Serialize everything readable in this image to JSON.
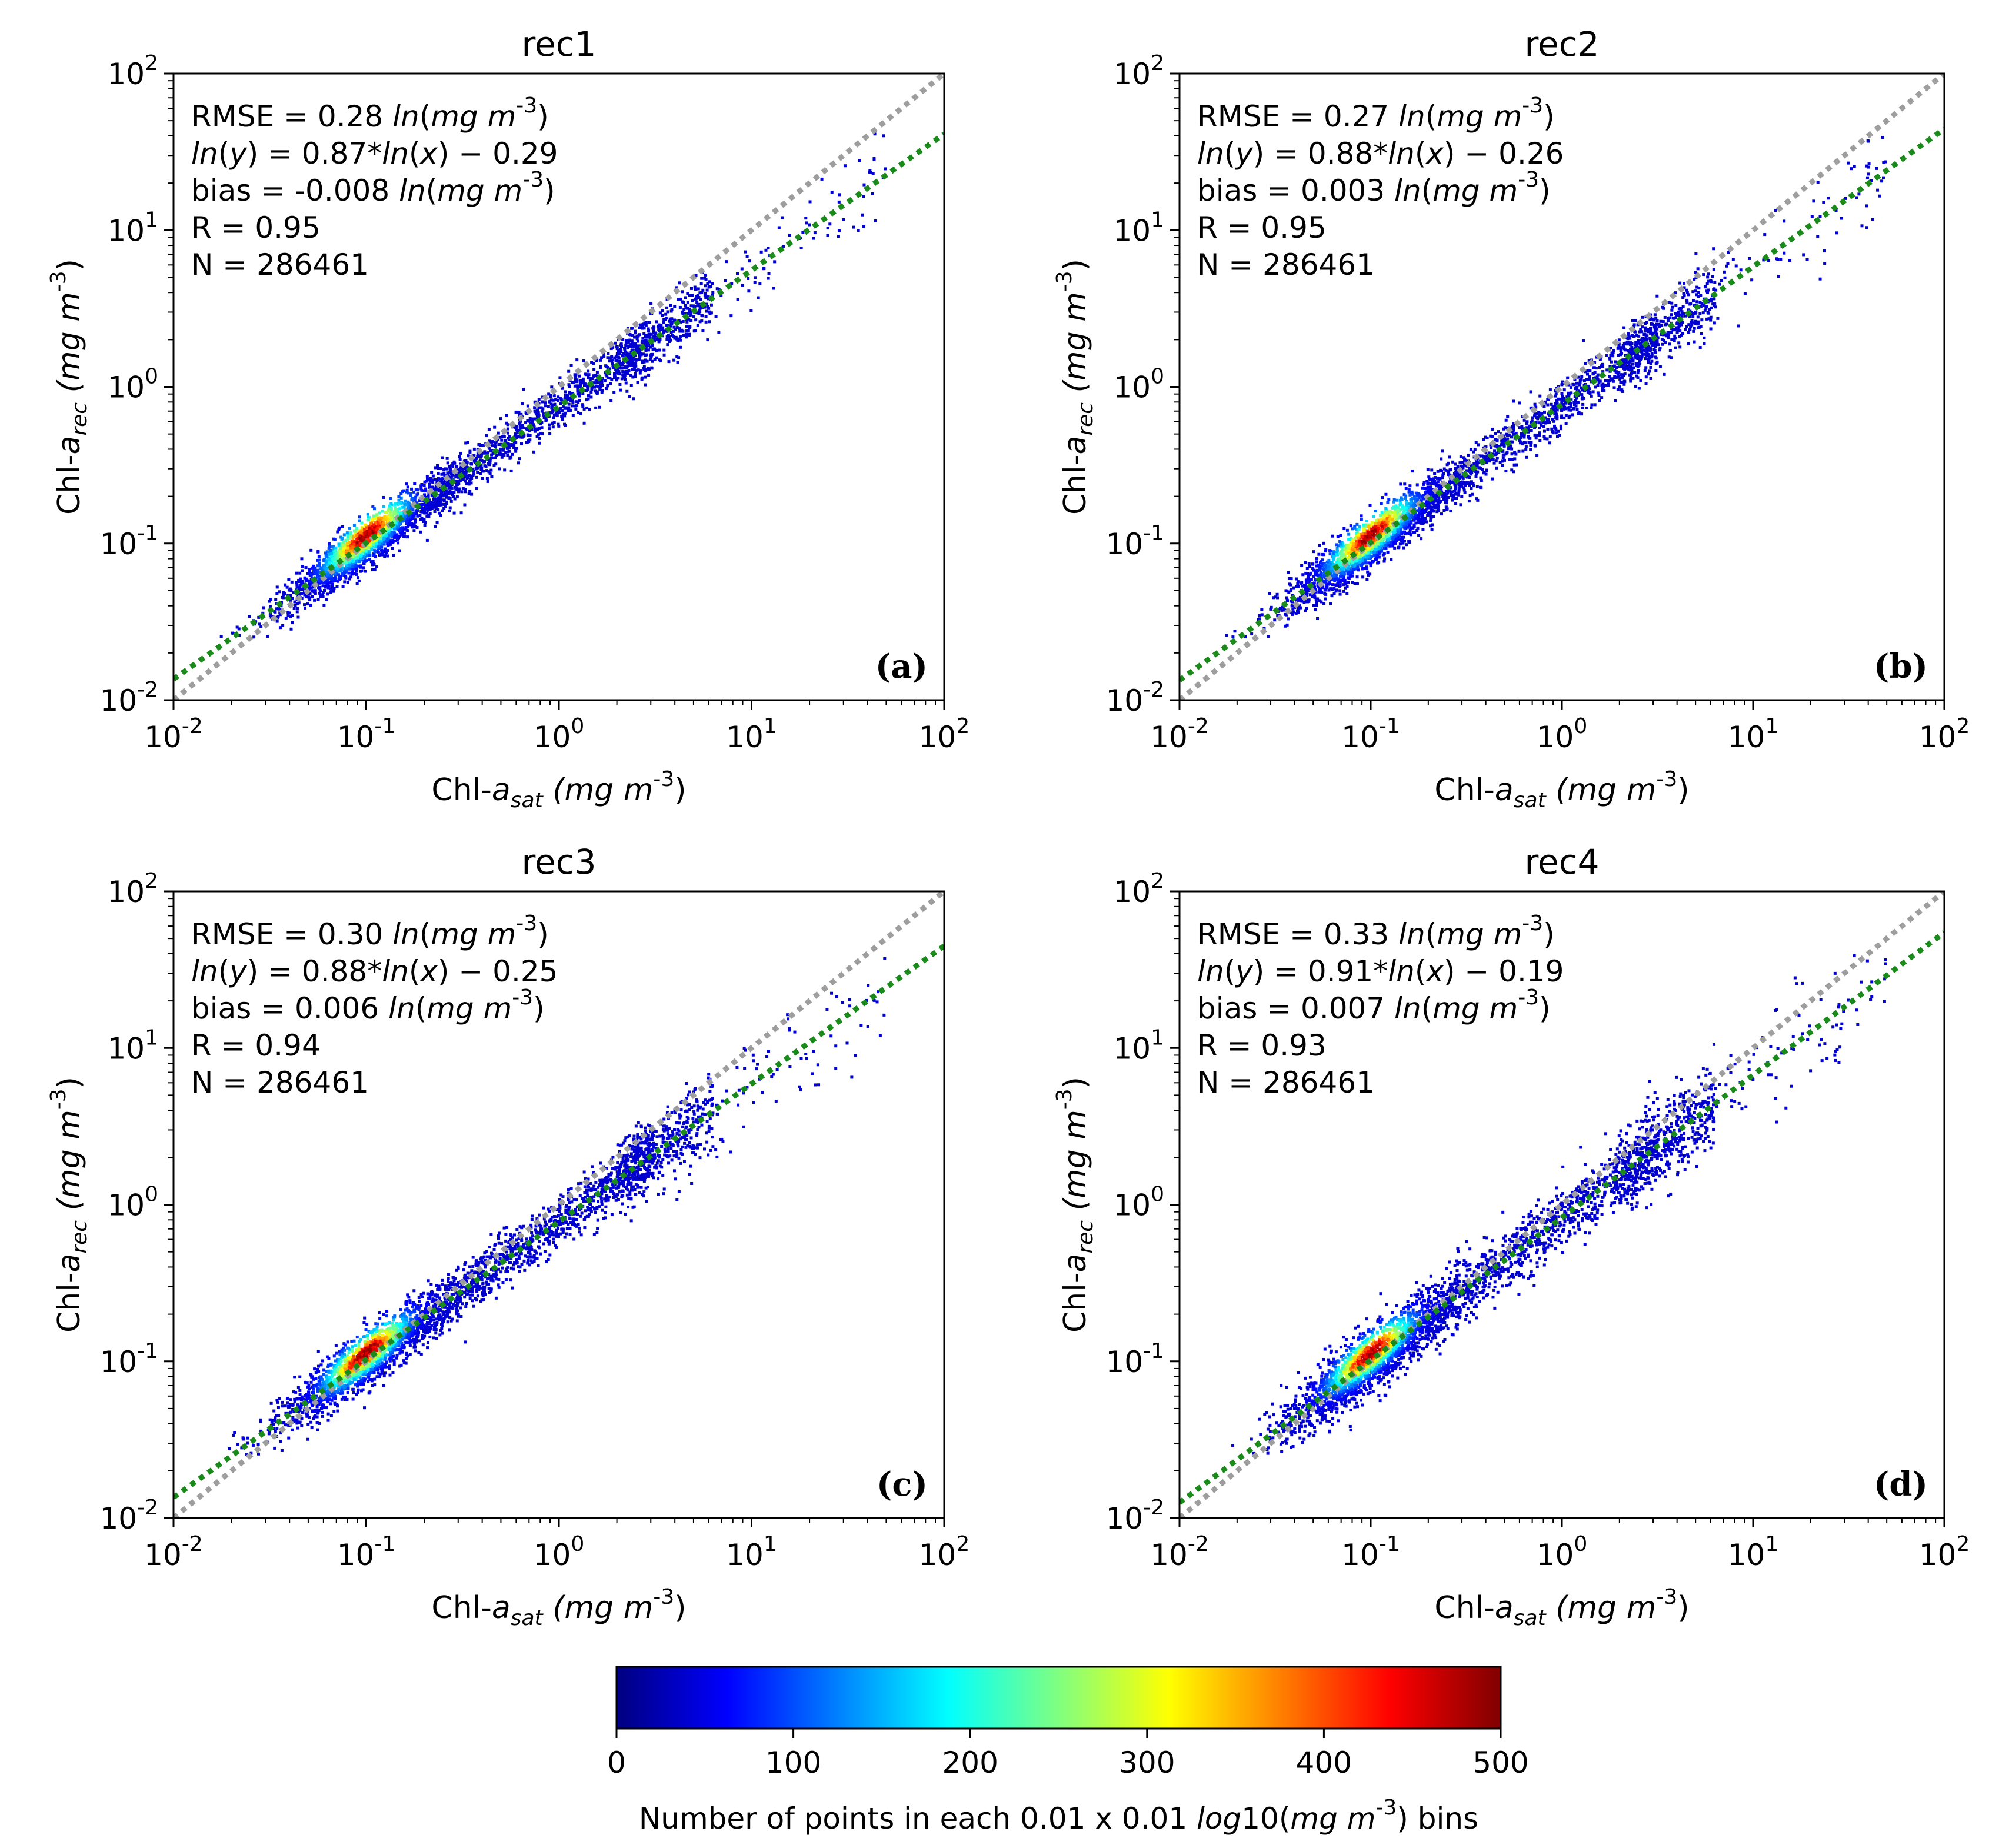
{
  "chart_data": [
    {
      "type": "scatter",
      "title": "rec1",
      "panel": "(a)",
      "xscale": "log",
      "yscale": "log",
      "xlim": [
        0.01,
        100
      ],
      "ylim": [
        0.01,
        100
      ],
      "xlabel": {
        "base": "Chl-",
        "italic": "a",
        "sub": "sat",
        "units": "(mg m",
        "exp": "-3",
        "close": ")"
      },
      "ylabel": {
        "base": "Chl-",
        "italic": "a",
        "sub": "rec",
        "units": "(mg m",
        "exp": "-3",
        "close": ")"
      },
      "stats": [
        "RMSE = 0.28 ln(mg m-3)",
        "ln(y) = 0.87*ln(x) − 0.29",
        "bias = -0.008 ln(mg m-3)",
        "R = 0.95",
        "N = 286461"
      ],
      "fit": {
        "slope": 0.87,
        "intercept": -0.29
      },
      "one_to_one": true,
      "density_peak": {
        "x": 0.11,
        "y": 0.11
      }
    },
    {
      "type": "scatter",
      "title": "rec2",
      "panel": "(b)",
      "xscale": "log",
      "yscale": "log",
      "xlim": [
        0.01,
        100
      ],
      "ylim": [
        0.01,
        100
      ],
      "xlabel": {
        "base": "Chl-",
        "italic": "a",
        "sub": "sat",
        "units": "(mg m",
        "exp": "-3",
        "close": ")"
      },
      "ylabel": {
        "base": "Chl-",
        "italic": "a",
        "sub": "rec",
        "units": "(mg m",
        "exp": "-3",
        "close": ")"
      },
      "stats": [
        "RMSE = 0.27 ln(mg m-3)",
        "ln(y) = 0.88*ln(x) − 0.26",
        "bias = 0.003 ln(mg m-3)",
        "R = 0.95",
        "N = 286461"
      ],
      "fit": {
        "slope": 0.88,
        "intercept": -0.26
      },
      "one_to_one": true,
      "density_peak": {
        "x": 0.1,
        "y": 0.1
      }
    },
    {
      "type": "scatter",
      "title": "rec3",
      "panel": "(c)",
      "xscale": "log",
      "yscale": "log",
      "xlim": [
        0.01,
        100
      ],
      "ylim": [
        0.01,
        100
      ],
      "xlabel": {
        "base": "Chl-",
        "italic": "a",
        "sub": "sat",
        "units": "(mg m",
        "exp": "-3",
        "close": ")"
      },
      "ylabel": {
        "base": "Chl-",
        "italic": "a",
        "sub": "rec",
        "units": "(mg m",
        "exp": "-3",
        "close": ")"
      },
      "stats": [
        "RMSE = 0.30 ln(mg m-3)",
        "ln(y) = 0.88*ln(x) − 0.25",
        "bias = 0.006 ln(mg m-3)",
        "R = 0.94",
        "N = 286461"
      ],
      "fit": {
        "slope": 0.88,
        "intercept": -0.25
      },
      "one_to_one": true,
      "density_peak": {
        "x": 0.11,
        "y": 0.11
      }
    },
    {
      "type": "scatter",
      "title": "rec4",
      "panel": "(d)",
      "xscale": "log",
      "yscale": "log",
      "xlim": [
        0.01,
        100
      ],
      "ylim": [
        0.01,
        100
      ],
      "xlabel": {
        "base": "Chl-",
        "italic": "a",
        "sub": "sat",
        "units": "(mg m",
        "exp": "-3",
        "close": ")"
      },
      "ylabel": {
        "base": "Chl-",
        "italic": "a",
        "sub": "rec",
        "units": "(mg m",
        "exp": "-3",
        "close": ")"
      },
      "stats": [
        "RMSE = 0.33 ln(mg m-3)",
        "ln(y) = 0.91*ln(x) − 0.19",
        "bias = 0.007 ln(mg m-3)",
        "R = 0.93",
        "N = 286461"
      ],
      "fit": {
        "slope": 0.91,
        "intercept": -0.19
      },
      "one_to_one": true,
      "density_peak": {
        "x": 0.1,
        "y": 0.1
      }
    }
  ],
  "axis_ticks": [
    "10",
    "10",
    "10",
    "10",
    "10"
  ],
  "axis_tick_exponents": [
    "-2",
    "-1",
    "0",
    "1",
    "2"
  ],
  "colorbar": {
    "ticks": [
      0,
      100,
      200,
      300,
      400,
      500
    ],
    "range": [
      0,
      500
    ],
    "colormap": "jet",
    "label_pre": "Number of points in each 0.01 x 0.01 ",
    "label_italic": "log",
    "label_mid": "10(",
    "label_italic2": "mg m",
    "label_exp": "-3",
    "label_post": ") bins"
  },
  "colors": {
    "one_to_one_line": "#9e9e9e",
    "fit_line": "#1a8a1a",
    "cmap": [
      "#000080",
      "#0000ff",
      "#0080ff",
      "#00ffff",
      "#80ff80",
      "#ffff00",
      "#ff8000",
      "#ff0000",
      "#800000"
    ]
  }
}
